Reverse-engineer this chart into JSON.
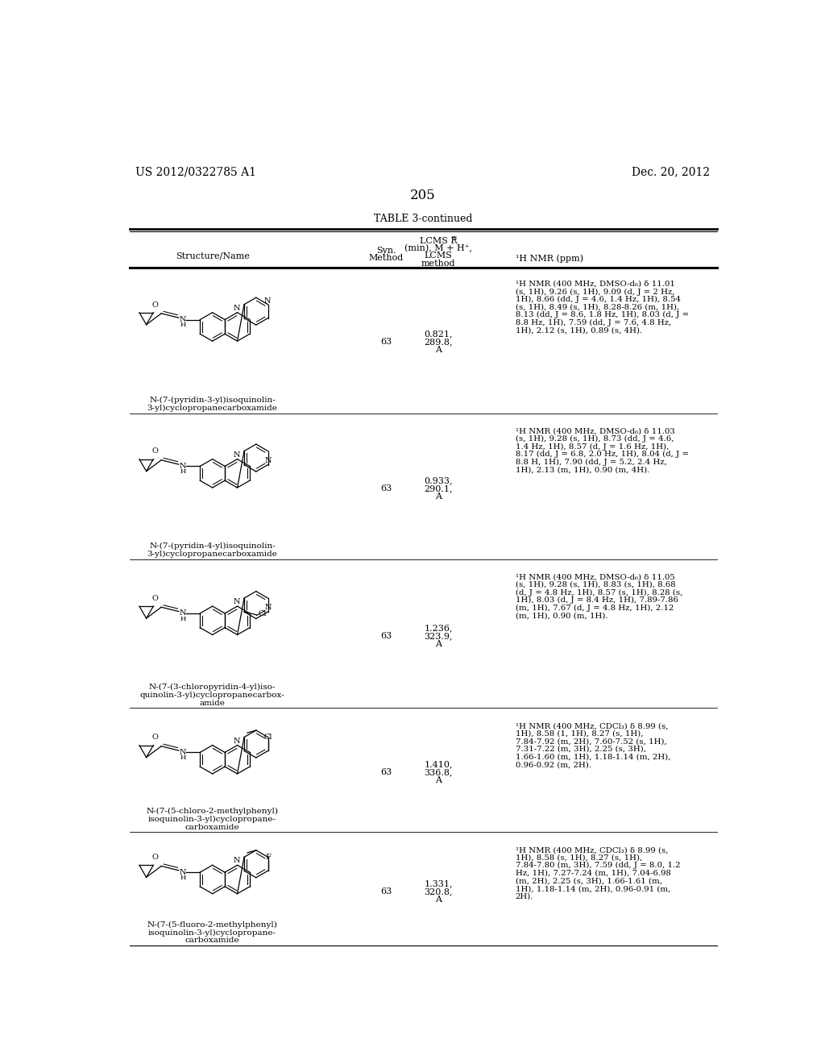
{
  "page_header_left": "US 2012/0322785 A1",
  "page_header_right": "Dec. 20, 2012",
  "page_number": "205",
  "table_title": "TABLE 3-continued",
  "rows": [
    {
      "syn": "63",
      "lcms": [
        "0.821,",
        "289.8,",
        "A"
      ],
      "nmr": [
        "¹H NMR (400 MHz, DMSO-d₆) δ 11.01",
        "(s, 1H), 9.26 (s, 1H), 9.09 (d, J = 2 Hz,",
        "1H), 8.66 (dd, J = 4.6, 1.4 Hz, 1H), 8.54",
        "(s, 1H), 8.49 (s, 1H), 8.28-8.26 (m, 1H),",
        "8.13 (dd, J = 8.6, 1.8 Hz, 1H), 8.03 (d, J =",
        "8.8 Hz, 1H), 7.59 (dd, J = 7.6, 4.8 Hz,",
        "1H), 2.12 (s, 1H), 0.89 (s, 4H)."
      ],
      "name": [
        "N-(7-(pyridin-3-yl)isoquinolin-",
        "3-yl)cyclopropanecarboxamide"
      ],
      "substituent": "pyridin-3-yl"
    },
    {
      "syn": "63",
      "lcms": [
        "0.933,",
        "290.1,",
        "A"
      ],
      "nmr": [
        "¹H NMR (400 MHz, DMSO-d₆) δ 11.03",
        "(s, 1H), 9.28 (s, 1H), 8.73 (dd, J = 4.6,",
        "1.4 Hz, 1H), 8.57 (d, J = 1.6 Hz, 1H),",
        "8.17 (dd, J = 6.8, 2.0 Hz, 1H), 8.04 (d, J =",
        "8.8 H, 1H), 7.90 (dd, J = 5.2, 2.4 Hz,",
        "1H), 2.13 (m, 1H), 0.90 (m, 4H)."
      ],
      "name": [
        "N-(7-(pyridin-4-yl)isoquinolin-",
        "3-yl)cyclopropanecarboxamide"
      ],
      "substituent": "pyridin-4-yl"
    },
    {
      "syn": "63",
      "lcms": [
        "1.236,",
        "323.9,",
        "A"
      ],
      "nmr": [
        "¹H NMR (400 MHz, DMSO-d₆) δ 11.05",
        "(s, 1H), 9.28 (s, 1H), 8.83 (s, 1H), 8.68",
        "(d, J = 4.8 Hz, 1H), 8.57 (s, 1H), 8.28 (s,",
        "1H), 8.03 (d, J = 8.4 Hz, 1H), 7.89-7.86",
        "(m, 1H), 7.67 (d, J = 4.8 Hz, 1H), 2.12",
        "(m, 1H), 0.90 (m, 1H)."
      ],
      "name": [
        "N-(7-(3-chloropyridin-4-yl)iso-",
        "quinolin-3-yl)cyclopropanecarbox-",
        "amide"
      ],
      "substituent": "3-chloropyridin-4-yl"
    },
    {
      "syn": "63",
      "lcms": [
        "1.410,",
        "336.8,",
        "A"
      ],
      "nmr": [
        "¹H NMR (400 MHz, CDCl₃) δ 8.99 (s,",
        "1H), 8.58 (1, 1H), 8.27 (s, 1H),",
        "7.84-7.92 (m, 2H), 7.60-7.52 (s, 1H),",
        "7.31-7.22 (m, 3H), 2.25 (s, 3H),",
        "1.66-1.60 (m, 1H), 1.18-1.14 (m, 2H),",
        "0.96-0.92 (m, 2H)."
      ],
      "name": [
        "N-(7-(5-chloro-2-methylphenyl)",
        "isoquinolin-3-yl)cyclopropane-",
        "carboxamide"
      ],
      "substituent": "5-chloro-2-methylphenyl"
    },
    {
      "syn": "63",
      "lcms": [
        "1.331,",
        "320.8,",
        "A"
      ],
      "nmr": [
        "¹H NMR (400 MHz, CDCl₃) δ 8.99 (s,",
        "1H), 8.58 (s, 1H), 8.27 (s, 1H),",
        "7.84-7.80 (m, 3H), 7.59 (dd, J = 8.0, 1.2",
        "Hz, 1H), 7.27-7.24 (m, 1H), 7.04-6.98",
        "(m, 2H), 2.25 (s, 3H), 1.66-1.61 (m,",
        "1H), 1.18-1.14 (m, 2H), 0.96-0.91 (m,",
        "2H)."
      ],
      "name": [
        "N-(7-(5-fluoro-2-methylphenyl)",
        "isoquinolin-3-yl)cyclopropane-",
        "carboxamide"
      ],
      "substituent": "5-fluoro-2-methylphenyl"
    }
  ]
}
